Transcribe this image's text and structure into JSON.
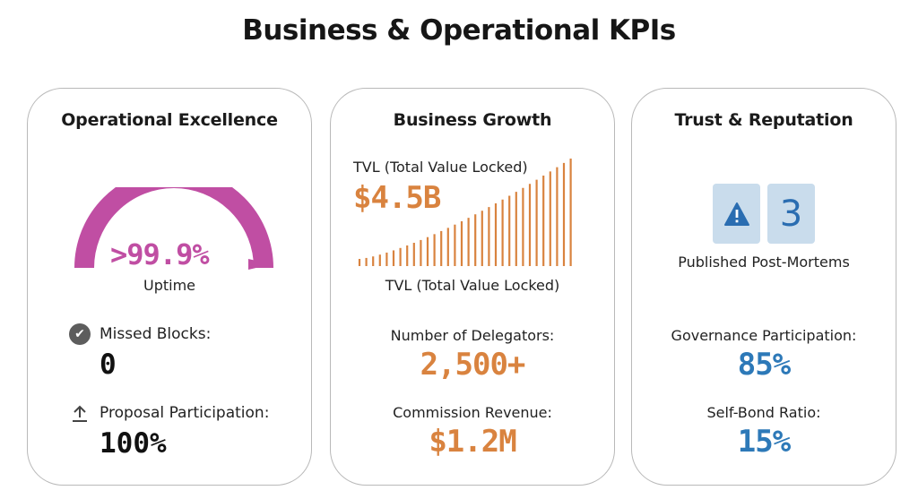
{
  "page": {
    "title": "Business & Operational KPIs"
  },
  "operational": {
    "title": "Operational Excellence",
    "uptime_value": ">99.9%",
    "uptime_fraction": 0.999,
    "uptime_label": "Uptime",
    "missed_blocks_label": "Missed Blocks:",
    "missed_blocks_value": "0",
    "proposal_label": "Proposal Participation:",
    "proposal_value": "100%",
    "gauge_color": "#c04ea3",
    "icons": {
      "missed_blocks": "check-circle-icon",
      "proposal": "upload-arrow-icon"
    }
  },
  "business": {
    "title": "Business Growth",
    "tvl_top_label": "TVL (Total Value Locked)",
    "tvl_value": "$4.5B",
    "tvl_bottom_label": "TVL (Total Value Locked)",
    "delegators_label": "Number of Delegators:",
    "delegators_value": "2,500+",
    "commission_label": "Commission Revenue:",
    "commission_value": "$1.2M",
    "accent_color": "#d9833f"
  },
  "trust": {
    "title": "Trust & Reputation",
    "post_mortems_count": "3",
    "post_mortems_label": "Published Post-Mortems",
    "governance_label": "Governance Participation:",
    "governance_value": "85%",
    "self_bond_label": "Self-Bond Ratio:",
    "self_bond_value": "15%",
    "accent_color": "#2d79b8",
    "icons": {
      "post_mortems": "warning-icon"
    }
  }
}
